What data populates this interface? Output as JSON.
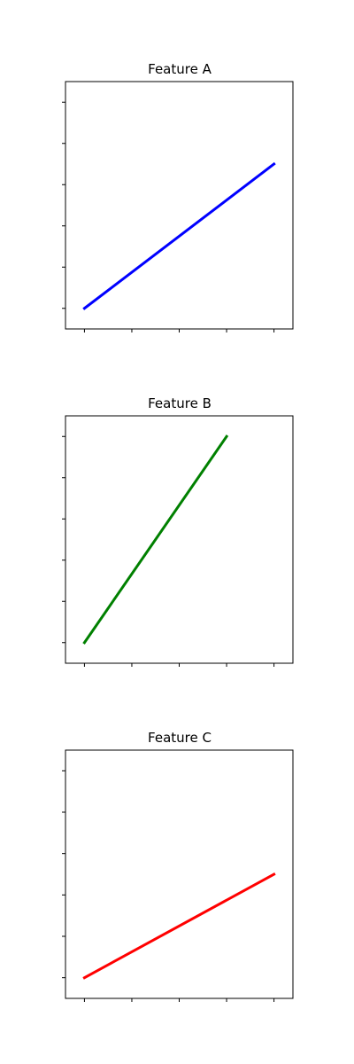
{
  "chart_data": [
    {
      "type": "line",
      "title": "Feature A",
      "xlabel": "",
      "ylabel": "",
      "x": [
        0,
        1,
        2,
        3,
        4
      ],
      "series": [
        {
          "x": [
            0,
            4
          ],
          "values": [
            0,
            3.5
          ],
          "color": "#0000ff"
        }
      ],
      "xlim": [
        -0.4,
        4.4
      ],
      "ylim": [
        -0.5,
        5.5
      ],
      "yticks": [
        0,
        1,
        2,
        3,
        4,
        5
      ],
      "xtick_labels_visible": false,
      "ytick_labels_visible": false,
      "grid": false
    },
    {
      "type": "line",
      "title": "Feature B",
      "xlabel": "",
      "ylabel": "",
      "x": [
        0,
        1,
        2,
        3,
        4
      ],
      "series": [
        {
          "x": [
            0,
            3
          ],
          "values": [
            0,
            5
          ],
          "color": "#008000"
        }
      ],
      "xlim": [
        -0.4,
        4.4
      ],
      "ylim": [
        -0.5,
        5.5
      ],
      "yticks": [
        0,
        1,
        2,
        3,
        4,
        5
      ],
      "xtick_labels_visible": false,
      "ytick_labels_visible": false,
      "grid": false
    },
    {
      "type": "line",
      "title": "Feature C",
      "xlabel": "",
      "ylabel": "",
      "x": [
        0,
        1,
        2,
        3,
        4
      ],
      "series": [
        {
          "x": [
            0,
            4
          ],
          "values": [
            0,
            2.5
          ],
          "color": "#ff0000"
        }
      ],
      "xlim": [
        -0.4,
        4.4
      ],
      "ylim": [
        -0.5,
        5.5
      ],
      "yticks": [
        0,
        1,
        2,
        3,
        4,
        5
      ],
      "xtick_labels_visible": false,
      "ytick_labels_visible": false,
      "grid": false
    }
  ]
}
